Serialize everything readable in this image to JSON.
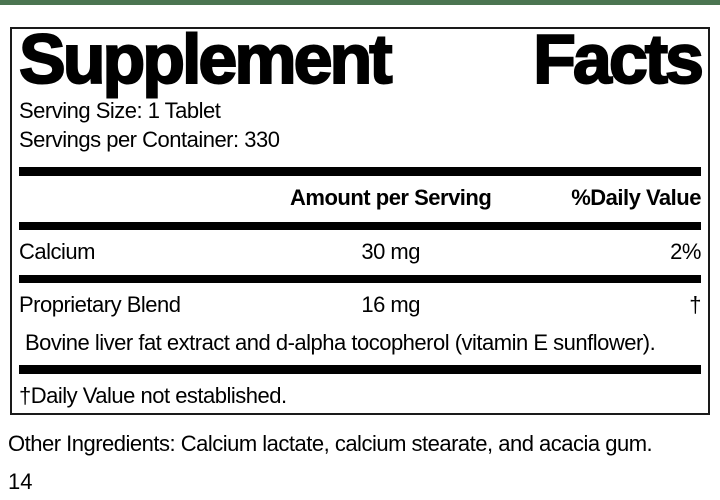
{
  "accent": {
    "top_bar_color": "#4b7551",
    "border_color": "#1a1a1a",
    "bar_color": "#000000"
  },
  "label": {
    "title": {
      "word1": "Supplement",
      "word2": "Facts"
    },
    "serving": {
      "serving_size": "Serving Size: 1 Tablet",
      "servings_per_container": "Servings per Container: 330"
    },
    "columns": {
      "amount_header": "Amount per Serving",
      "dv_header": "%Daily Value"
    },
    "rows": [
      {
        "name": "Calcium",
        "amount": "30 mg",
        "dv": "2%"
      },
      {
        "name": "Proprietary Blend",
        "amount": "16 mg",
        "dv": "†",
        "description": "Bovine liver fat extract and d-alpha tocopherol (vitamin E sunflower)."
      }
    ],
    "footnote": "†Daily Value not established."
  },
  "other_ingredients": "Other Ingredients: Calcium lactate, calcium stearate, and acacia gum.",
  "page_number": "14"
}
